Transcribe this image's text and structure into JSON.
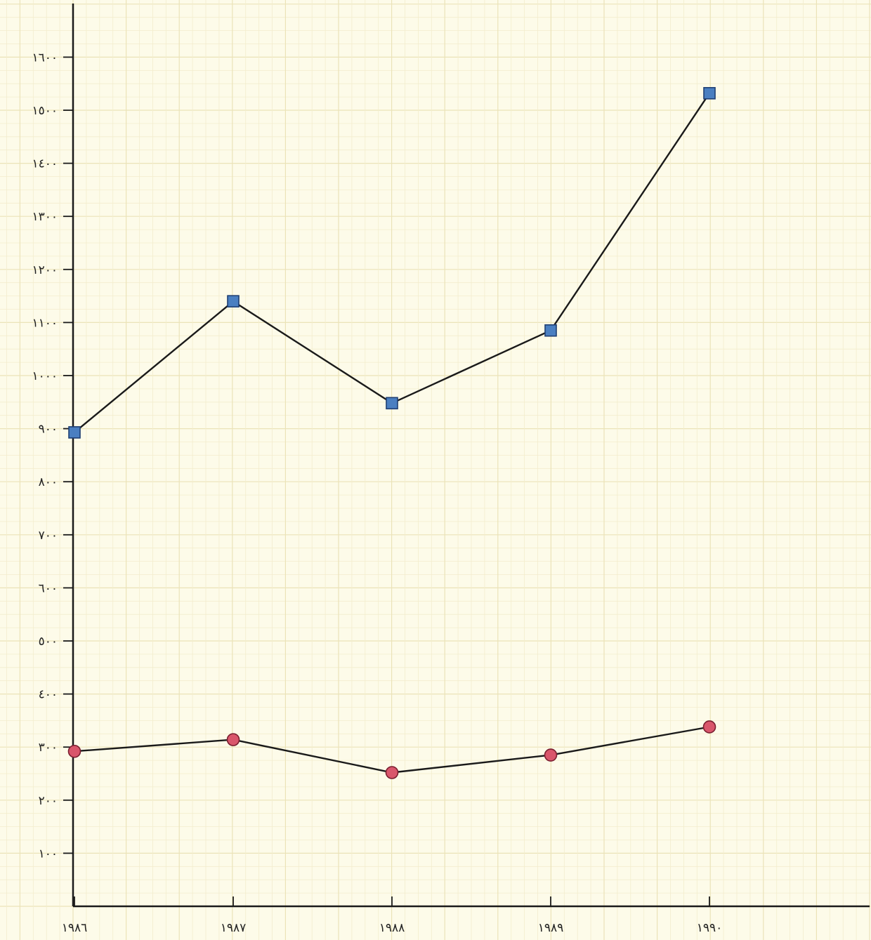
{
  "chart_data": {
    "type": "line",
    "categories": [
      "١٩٨٦",
      "١٩٨٧",
      "١٩٨٨",
      "١٩٨٩",
      "١٩٩٠"
    ],
    "y_ticks": [
      100,
      200,
      300,
      400,
      500,
      600,
      700,
      800,
      900,
      1000,
      1100,
      1200,
      1300,
      1400,
      1500,
      1600
    ],
    "y_tick_labels": [
      "١٠٠",
      "٢٠٠",
      "٣٠٠",
      "٤٠٠",
      "٥٠٠",
      "٦٠٠",
      "٧٠٠",
      "٨٠٠",
      "٩٠٠",
      "١٠٠٠",
      "١١٠٠",
      "١٢٠٠",
      "١٣٠٠",
      "١٤٠٠",
      "١٥٠٠",
      "١٦٠٠"
    ],
    "ylim": [
      0,
      1700
    ],
    "grid": true,
    "series": [
      {
        "values": [
          893,
          1140,
          948,
          1085,
          1532
        ],
        "marker": "square",
        "color": "#4a7fc1"
      },
      {
        "values": [
          292,
          314,
          252,
          285,
          338
        ],
        "marker": "circle",
        "color": "#d9566b"
      }
    ]
  }
}
